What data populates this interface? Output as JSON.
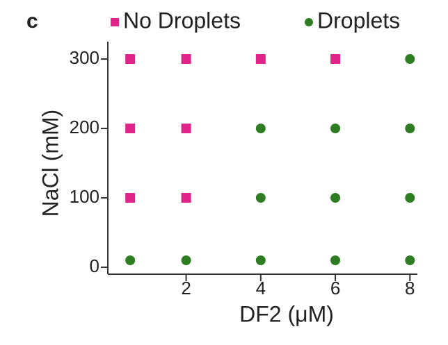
{
  "chart_data": {
    "type": "scatter",
    "panel_label": "c",
    "x_label": "DF2 (μM)",
    "y_label": "NaCl (mM)",
    "xlim": [
      -0.1,
      8.2
    ],
    "ylim": [
      -10,
      325
    ],
    "xticks": [
      2,
      4,
      6,
      8
    ],
    "yticks": [
      0,
      100,
      200,
      300
    ],
    "legend": "top",
    "series": [
      {
        "name": "No Droplets",
        "color": "#e0248a",
        "marker": "square",
        "x": [
          0.5,
          2,
          4,
          6,
          0.5,
          2,
          0.5,
          2
        ],
        "values": [
          300,
          300,
          300,
          300,
          200,
          200,
          100,
          100
        ]
      },
      {
        "name": "Droplets",
        "color": "#2e7d22",
        "marker": "circle",
        "x": [
          8,
          4,
          6,
          8,
          4,
          6,
          8,
          0.5,
          2,
          4,
          6,
          8
        ],
        "values": [
          300,
          200,
          200,
          200,
          100,
          100,
          100,
          10,
          10,
          10,
          10,
          10
        ]
      }
    ]
  }
}
